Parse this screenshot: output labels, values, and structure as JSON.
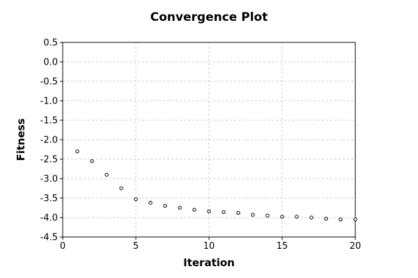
{
  "chart_data": {
    "type": "scatter",
    "title": "Convergence Plot",
    "xlabel": "Iteration",
    "ylabel": "Fitness",
    "xlim": [
      0,
      20
    ],
    "ylim": [
      -4.5,
      0.5
    ],
    "xticks": [
      0,
      5,
      10,
      15,
      20
    ],
    "xtick_labels": [
      "0",
      "5",
      "10",
      "15",
      "20"
    ],
    "yticks": [
      0.5,
      0.0,
      -0.5,
      -1.0,
      -1.5,
      -2.0,
      -2.5,
      -3.0,
      -3.5,
      -4.0,
      -4.5
    ],
    "ytick_labels": [
      "0.5",
      "0.0",
      "-0.5",
      "-1.0",
      "-1.5",
      "-2.0",
      "-2.5",
      "-3.0",
      "-3.5",
      "-4.0",
      "-4.5"
    ],
    "grid": true,
    "series": [
      {
        "x": [
          1,
          2,
          3,
          4,
          5,
          6,
          7,
          8,
          9,
          10,
          11,
          12,
          13,
          14,
          15,
          16,
          17,
          18,
          19,
          20
        ],
        "values": [
          -2.3,
          -2.55,
          -2.9,
          -3.25,
          -3.53,
          -3.62,
          -3.7,
          -3.75,
          -3.8,
          -3.84,
          -3.86,
          -3.88,
          -3.93,
          -3.95,
          -3.98,
          -3.98,
          -4.0,
          -4.03,
          -4.05,
          -4.05
        ]
      }
    ]
  }
}
